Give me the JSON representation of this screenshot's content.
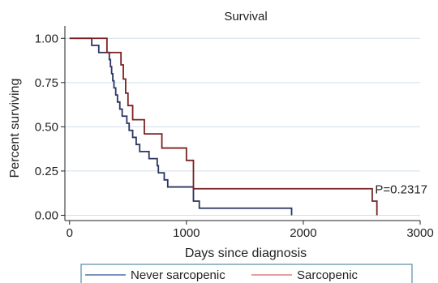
{
  "chart_data": {
    "type": "line",
    "title": "Survival",
    "xlabel": "Days since diagnosis",
    "ylabel": "Percent surviving",
    "xlim": [
      -40,
      3000
    ],
    "ylim": [
      -0.03,
      1.07
    ],
    "x_ticks": [
      0,
      1000,
      2000,
      3000
    ],
    "x_tick_labels": [
      "0",
      "1000",
      "2000",
      "3000"
    ],
    "y_ticks": [
      0,
      0.25,
      0.5,
      0.75,
      1
    ],
    "y_tick_labels": [
      "0.00",
      "0.25",
      "0.50",
      "0.75",
      "1.00"
    ],
    "grid": true,
    "annotation": "P=0.2317",
    "annotation_position": {
      "x": 2600,
      "y": 0.15
    },
    "legend": {
      "placement": "bottom",
      "entries": [
        {
          "name": "Never sarcopenic",
          "color": "#4a6fa5"
        },
        {
          "name": "Sarcopenic",
          "color": "#d98080"
        }
      ]
    },
    "series": [
      {
        "name": "Never sarcopenic",
        "color": "#2a3560",
        "step": true,
        "x": [
          0,
          190,
          250,
          340,
          350,
          360,
          370,
          380,
          395,
          410,
          430,
          450,
          490,
          510,
          540,
          570,
          600,
          640,
          680,
          700,
          750,
          760,
          790,
          810,
          820,
          840,
          850,
          1060,
          1110,
          1900
        ],
        "y": [
          1.0,
          0.96,
          0.92,
          0.88,
          0.84,
          0.8,
          0.76,
          0.72,
          0.68,
          0.64,
          0.6,
          0.56,
          0.52,
          0.48,
          0.44,
          0.4,
          0.36,
          0.36,
          0.32,
          0.32,
          0.28,
          0.24,
          0.24,
          0.2,
          0.2,
          0.16,
          0.16,
          0.08,
          0.04,
          0.0
        ]
      },
      {
        "name": "Sarcopenic",
        "color": "#7b2222",
        "step": true,
        "x": [
          0,
          320,
          440,
          460,
          480,
          500,
          540,
          640,
          790,
          1000,
          1060,
          2590,
          2630
        ],
        "y": [
          1.0,
          0.92,
          0.85,
          0.77,
          0.69,
          0.62,
          0.54,
          0.46,
          0.38,
          0.31,
          0.15,
          0.08,
          0.0
        ]
      }
    ]
  }
}
